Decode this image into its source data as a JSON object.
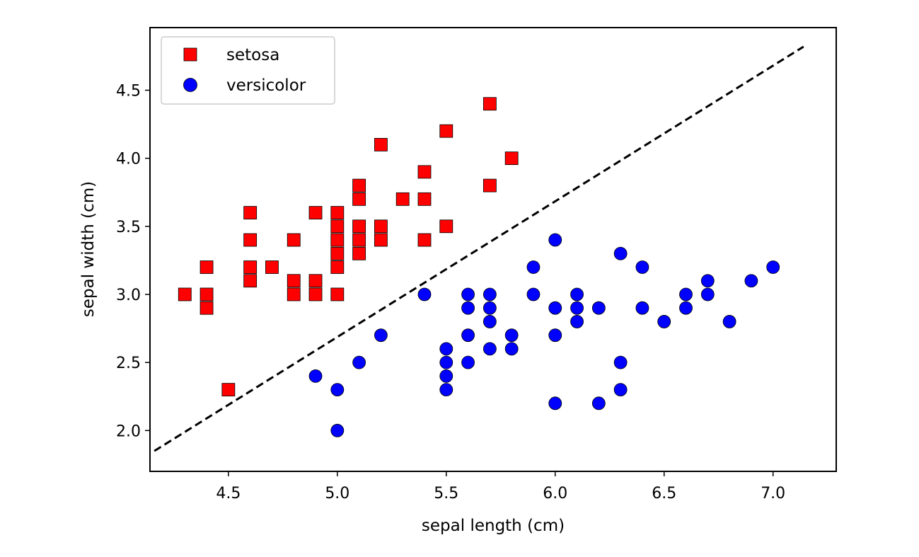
{
  "chart_data": {
    "type": "scatter",
    "title": "",
    "xlabel": "sepal length (cm)",
    "ylabel": "sepal width (cm)",
    "xlim": [
      4.14,
      7.29
    ],
    "ylim": [
      1.7,
      4.96
    ],
    "xticks": [
      4.5,
      5.0,
      5.5,
      6.0,
      6.5,
      7.0
    ],
    "yticks": [
      2.0,
      2.5,
      3.0,
      3.5,
      4.0,
      4.5
    ],
    "xtick_labels": [
      "4.5",
      "5.0",
      "5.5",
      "6.0",
      "6.5",
      "7.0"
    ],
    "ytick_labels": [
      "2.0",
      "2.5",
      "3.0",
      "3.5",
      "4.0",
      "4.5"
    ],
    "grid": false,
    "legend_position": "top-left",
    "series": [
      {
        "name": "setosa",
        "marker": "square",
        "color": "#ff0000",
        "points": [
          [
            4.3,
            3.0
          ],
          [
            4.4,
            3.2
          ],
          [
            4.4,
            3.0
          ],
          [
            4.4,
            2.9
          ],
          [
            4.5,
            2.3
          ],
          [
            4.6,
            3.6
          ],
          [
            4.6,
            3.4
          ],
          [
            4.6,
            3.2
          ],
          [
            4.6,
            3.1
          ],
          [
            4.7,
            3.2
          ],
          [
            4.8,
            3.4
          ],
          [
            4.8,
            3.1
          ],
          [
            4.8,
            3.0
          ],
          [
            4.9,
            3.6
          ],
          [
            4.9,
            3.1
          ],
          [
            4.9,
            3.0
          ],
          [
            5.0,
            3.6
          ],
          [
            5.0,
            3.5
          ],
          [
            5.0,
            3.4
          ],
          [
            5.0,
            3.3
          ],
          [
            5.0,
            3.2
          ],
          [
            5.0,
            3.0
          ],
          [
            5.1,
            3.8
          ],
          [
            5.1,
            3.7
          ],
          [
            5.1,
            3.5
          ],
          [
            5.1,
            3.4
          ],
          [
            5.1,
            3.3
          ],
          [
            5.2,
            4.1
          ],
          [
            5.2,
            3.5
          ],
          [
            5.2,
            3.4
          ],
          [
            5.3,
            3.7
          ],
          [
            5.4,
            3.9
          ],
          [
            5.4,
            3.7
          ],
          [
            5.4,
            3.4
          ],
          [
            5.5,
            4.2
          ],
          [
            5.5,
            3.5
          ],
          [
            5.7,
            4.4
          ],
          [
            5.7,
            3.8
          ],
          [
            5.8,
            4.0
          ]
        ]
      },
      {
        "name": "versicolor",
        "marker": "circle",
        "color": "#0000ff",
        "points": [
          [
            4.9,
            2.4
          ],
          [
            5.0,
            2.3
          ],
          [
            5.0,
            2.0
          ],
          [
            5.1,
            2.5
          ],
          [
            5.2,
            2.7
          ],
          [
            5.4,
            3.0
          ],
          [
            5.5,
            2.6
          ],
          [
            5.5,
            2.5
          ],
          [
            5.5,
            2.4
          ],
          [
            5.5,
            2.3
          ],
          [
            5.6,
            3.0
          ],
          [
            5.6,
            2.9
          ],
          [
            5.6,
            2.7
          ],
          [
            5.6,
            2.5
          ],
          [
            5.7,
            3.0
          ],
          [
            5.7,
            2.9
          ],
          [
            5.7,
            2.8
          ],
          [
            5.7,
            2.6
          ],
          [
            5.8,
            2.7
          ],
          [
            5.8,
            2.6
          ],
          [
            5.9,
            3.2
          ],
          [
            5.9,
            3.0
          ],
          [
            6.0,
            3.4
          ],
          [
            6.0,
            2.9
          ],
          [
            6.0,
            2.7
          ],
          [
            6.0,
            2.2
          ],
          [
            6.1,
            3.0
          ],
          [
            6.1,
            2.9
          ],
          [
            6.1,
            2.8
          ],
          [
            6.2,
            2.9
          ],
          [
            6.2,
            2.2
          ],
          [
            6.3,
            3.3
          ],
          [
            6.3,
            2.5
          ],
          [
            6.3,
            2.3
          ],
          [
            6.4,
            3.2
          ],
          [
            6.4,
            2.9
          ],
          [
            6.5,
            2.8
          ],
          [
            6.6,
            3.0
          ],
          [
            6.6,
            2.9
          ],
          [
            6.7,
            3.1
          ],
          [
            6.7,
            3.0
          ],
          [
            6.8,
            2.8
          ],
          [
            6.9,
            3.1
          ],
          [
            7.0,
            3.2
          ]
        ]
      }
    ],
    "decision_boundary": {
      "style": "dashed",
      "color": "#000000",
      "points": [
        [
          4.16,
          1.85
        ],
        [
          7.14,
          4.82
        ]
      ]
    }
  }
}
